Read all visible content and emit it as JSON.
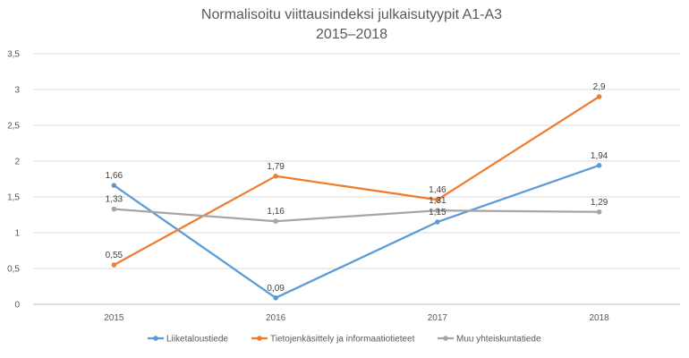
{
  "chart_data": {
    "type": "line",
    "title": "Normalisoitu viittausindeksi julkaisutyypit A1-A3",
    "subtitle": "2015–2018",
    "categories": [
      "2015",
      "2016",
      "2017",
      "2018"
    ],
    "y_ticks": [
      "0",
      "0,5",
      "1",
      "1,5",
      "2",
      "2,5",
      "3",
      "3,5"
    ],
    "ylim": [
      0,
      3.5
    ],
    "grid": "horizontal",
    "legend_position": "bottom",
    "series": [
      {
        "name": "Liiketaloustiede",
        "color": "#5b9bd5",
        "values": [
          1.66,
          0.09,
          1.15,
          1.94
        ],
        "labels": [
          "1,66",
          "0,09",
          "1,15",
          "1,94"
        ]
      },
      {
        "name": "Tietojenkäsittely ja informaatiotieteet",
        "color": "#ed7d31",
        "values": [
          0.55,
          1.79,
          1.46,
          2.9
        ],
        "labels": [
          "0,55",
          "1,79",
          "1,46",
          "2,9"
        ]
      },
      {
        "name": "Muu yhteiskuntatiede",
        "color": "#a5a5a5",
        "values": [
          1.33,
          1.16,
          1.31,
          1.29
        ],
        "labels": [
          "1,33",
          "1,16",
          "1,31",
          "1,29"
        ]
      }
    ]
  }
}
